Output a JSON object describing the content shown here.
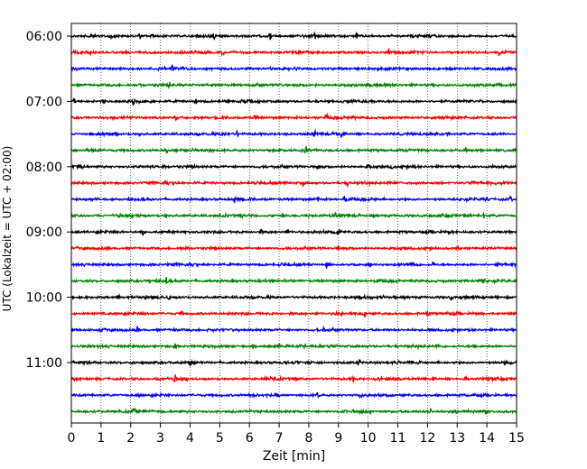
{
  "chart_data": {
    "type": "line",
    "title": "",
    "xlabel": "Zeit  [min]",
    "ylabel": "UTC (Lokalzeit = UTC + 02:00)",
    "xlim": [
      0,
      15
    ],
    "x_ticks": [
      "0",
      "1",
      "2",
      "3",
      "4",
      "5",
      "6",
      "7",
      "8",
      "9",
      "10",
      "11",
      "12",
      "13",
      "14",
      "15"
    ],
    "y_tick_labels": [
      "06:00",
      "07:00",
      "08:00",
      "09:00",
      "10:00",
      "11:00"
    ],
    "trace_interval_min": 15,
    "trace_start": "06:00",
    "grid": "vertical dotted at each minute",
    "trace_colors": [
      "#000000",
      "#ff0000",
      "#0000ff",
      "#008000"
    ],
    "traces": [
      {
        "start": "06:00",
        "color": "black",
        "spikes": [
          2.3,
          2.7,
          4.8,
          6.7,
          8.2,
          9.6
        ]
      },
      {
        "start": "06:15",
        "color": "red",
        "spikes": [
          5.1,
          10.7,
          14.4
        ]
      },
      {
        "start": "06:30",
        "color": "blue",
        "spikes": [
          1.9,
          3.4
        ]
      },
      {
        "start": "06:45",
        "color": "green",
        "spikes": [
          3.3,
          10.6
        ]
      },
      {
        "start": "07:00",
        "color": "black",
        "spikes": [
          0.1,
          1.1,
          2.1,
          4.2
        ]
      },
      {
        "start": "07:15",
        "color": "red",
        "spikes": [
          3.5,
          6.2,
          8.6
        ]
      },
      {
        "start": "07:30",
        "color": "blue",
        "spikes": [
          2.3,
          5.6,
          8.2,
          9.1
        ]
      },
      {
        "start": "07:45",
        "color": "green",
        "spikes": [
          3.2,
          7.9,
          13.3
        ]
      },
      {
        "start": "08:00",
        "color": "black",
        "spikes": [
          2.3,
          8.3,
          10.0,
          10.8
        ]
      },
      {
        "start": "08:15",
        "color": "red",
        "spikes": [
          3.2,
          7.8,
          9.3,
          13.5
        ]
      },
      {
        "start": "08:30",
        "color": "blue",
        "spikes": [
          5.5,
          8.3,
          9.2,
          14.8
        ]
      },
      {
        "start": "08:45",
        "color": "green",
        "spikes": [
          3.2,
          8.9,
          13.9
        ]
      },
      {
        "start": "09:00",
        "color": "black",
        "spikes": [
          2.4,
          6.4,
          7.3,
          9.0
        ]
      },
      {
        "start": "09:15",
        "color": "red",
        "spikes": [
          3.7,
          9.0,
          13.0
        ]
      },
      {
        "start": "09:30",
        "color": "blue",
        "spikes": [
          8.6,
          12.2
        ]
      },
      {
        "start": "09:45",
        "color": "green",
        "spikes": [
          3.2,
          13.9
        ]
      },
      {
        "start": "10:00",
        "color": "black",
        "spikes": [
          1.6,
          3.3,
          10.9,
          12.8
        ]
      },
      {
        "start": "10:15",
        "color": "red",
        "spikes": [
          3.7,
          9.9,
          12.0
        ]
      },
      {
        "start": "10:30",
        "color": "blue",
        "spikes": [
          2.2,
          3.5,
          8.5
        ]
      },
      {
        "start": "10:45",
        "color": "green",
        "spikes": [
          3.5,
          7.0,
          13.6
        ]
      },
      {
        "start": "11:00",
        "color": "black",
        "spikes": [
          2.1,
          4.0,
          9.7
        ]
      },
      {
        "start": "11:15",
        "color": "red",
        "spikes": [
          3.5,
          9.5,
          13.3
        ]
      },
      {
        "start": "11:30",
        "color": "blue",
        "spikes": [
          8.3,
          9.8
        ]
      },
      {
        "start": "11:45",
        "color": "green",
        "spikes": [
          2.1,
          12.1,
          14.0
        ]
      }
    ]
  }
}
